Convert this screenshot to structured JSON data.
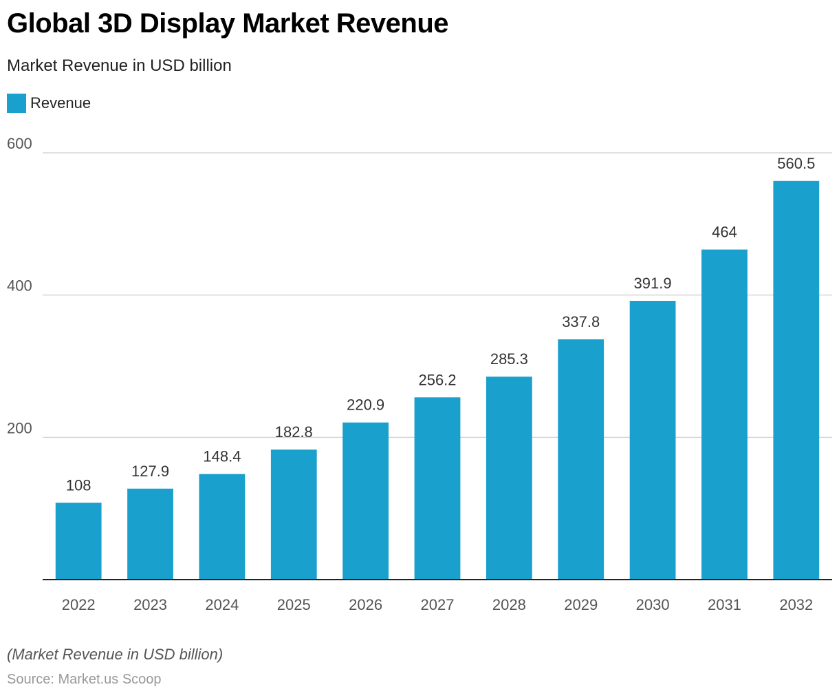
{
  "title": "Global 3D Display Market Revenue",
  "subtitle": "Market Revenue in USD billion",
  "note": "(Market Revenue in USD billion)",
  "source": "Source: Market.us Scoop",
  "colors": {
    "bar": "#1aa0cc",
    "grid": "#d6d6d6",
    "axis": "#222222"
  },
  "chart_data": {
    "type": "bar",
    "categories": [
      "2022",
      "2023",
      "2024",
      "2025",
      "2026",
      "2027",
      "2028",
      "2029",
      "2030",
      "2031",
      "2032"
    ],
    "series": [
      {
        "name": "Revenue",
        "values": [
          108,
          127.9,
          148.4,
          182.8,
          220.9,
          256.2,
          285.3,
          337.8,
          391.9,
          464,
          560.5
        ]
      }
    ],
    "value_labels": [
      "108",
      "127.9",
      "148.4",
      "182.8",
      "220.9",
      "256.2",
      "285.3",
      "337.8",
      "391.9",
      "464",
      "560.5"
    ],
    "yticks": [
      200,
      400,
      600
    ],
    "ylim": [
      0,
      600
    ],
    "grid": true,
    "legend_position": "top-left"
  }
}
